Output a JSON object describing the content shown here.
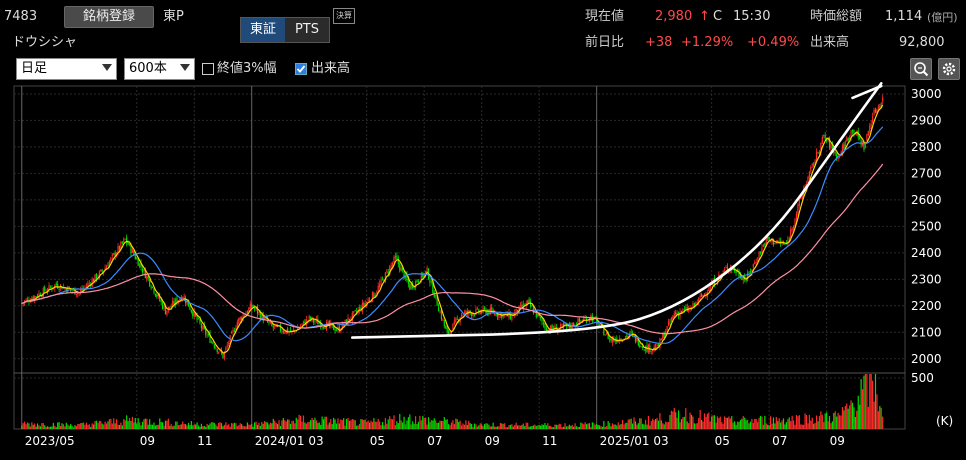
{
  "header": {
    "code": "7483",
    "register_label": "銘柄登録",
    "market": "東P",
    "company_name": "ドウシシャ",
    "tab_tse": "東証",
    "tab_pts": "PTS",
    "settle_badge": "決算",
    "current_label": "現在値",
    "current_value": "2,980",
    "current_arrow": "↑",
    "current_flag": "C",
    "current_time": "15:30",
    "prev_label": "前日比",
    "change": "+38",
    "change_pct": "+1.29%",
    "change_extra": "+0.49%",
    "mcap_label": "時価総額",
    "mcap_value": "1,114",
    "mcap_unit": "(億円)",
    "volume_label": "出来高",
    "volume_value": "92,800"
  },
  "controls": {
    "period": "日足",
    "bars": "600本",
    "close3_label": "終値3%幅",
    "close3_checked": false,
    "volume_label": "出来高",
    "volume_checked": true
  },
  "colors": {
    "up": "#ff4a4a",
    "candle_up": "#ff2b2b",
    "candle_down": "#00dd00",
    "ma_short": "#ffd400",
    "ma_mid": "#3a8cff",
    "ma_long": "#ff8fa3",
    "trend": "#ffffff",
    "grid": "#2a2a2a"
  },
  "chart_data": {
    "type": "line",
    "price_axis": {
      "ylim": [
        1950,
        3030
      ],
      "ticks": [
        2000,
        2100,
        2200,
        2300,
        2400,
        2500,
        2600,
        2700,
        2800,
        2900,
        3000
      ]
    },
    "volume_axis": {
      "max": 500,
      "tick": "500",
      "unit": "(K)"
    },
    "x_tick_labels": [
      "2023/05",
      "09",
      "11",
      "2024/01 03",
      "05",
      "07",
      "09",
      "11",
      "2025/01 03",
      "05",
      "07",
      "09"
    ],
    "x_tick_months": [
      0,
      4,
      6,
      8,
      12,
      14,
      16,
      18,
      20,
      24,
      26,
      28
    ],
    "x_range_months": [
      -0.2,
      30.1
    ],
    "price_path": [
      [
        0,
        2210
      ],
      [
        1.2,
        2280
      ],
      [
        2,
        2250
      ],
      [
        2.8,
        2330
      ],
      [
        3.6,
        2450
      ],
      [
        4.4,
        2300
      ],
      [
        5,
        2180
      ],
      [
        5.6,
        2240
      ],
      [
        6.3,
        2110
      ],
      [
        7,
        2010
      ],
      [
        7.5,
        2140
      ],
      [
        8,
        2200
      ],
      [
        8.7,
        2120
      ],
      [
        9.4,
        2100
      ],
      [
        10,
        2150
      ],
      [
        11,
        2110
      ],
      [
        11.6,
        2170
      ],
      [
        12.3,
        2250
      ],
      [
        13,
        2380
      ],
      [
        13.5,
        2270
      ],
      [
        14.1,
        2330
      ],
      [
        14.8,
        2090
      ],
      [
        15.3,
        2170
      ],
      [
        16.2,
        2180
      ],
      [
        17,
        2160
      ],
      [
        17.6,
        2210
      ],
      [
        18.3,
        2110
      ],
      [
        19,
        2120
      ],
      [
        19.8,
        2160
      ],
      [
        20.5,
        2070
      ],
      [
        21.2,
        2090
      ],
      [
        21.7,
        2040
      ],
      [
        22.1,
        2040
      ],
      [
        22.7,
        2170
      ],
      [
        23.3,
        2190
      ],
      [
        24,
        2280
      ],
      [
        24.6,
        2350
      ],
      [
        25.2,
        2300
      ],
      [
        25.9,
        2450
      ],
      [
        26.6,
        2430
      ],
      [
        27.2,
        2640
      ],
      [
        27.9,
        2840
      ],
      [
        28.4,
        2760
      ],
      [
        28.9,
        2870
      ],
      [
        29.3,
        2800
      ],
      [
        29.6,
        2920
      ],
      [
        29.95,
        2980
      ]
    ],
    "volume_path": [
      [
        0,
        55
      ],
      [
        2,
        40
      ],
      [
        3.8,
        90
      ],
      [
        6,
        50
      ],
      [
        8,
        45
      ],
      [
        9.8,
        95
      ],
      [
        12,
        60
      ],
      [
        13.3,
        110
      ],
      [
        16,
        45
      ],
      [
        18,
        40
      ],
      [
        20,
        45
      ],
      [
        22,
        90
      ],
      [
        23,
        150
      ],
      [
        24.5,
        80
      ],
      [
        26,
        90
      ],
      [
        27.5,
        110
      ],
      [
        28.5,
        130
      ],
      [
        29.6,
        480
      ],
      [
        29.95,
        200
      ]
    ],
    "ma_lengths": [
      5,
      25,
      75
    ],
    "trend_lines": [
      [
        [
          11.5,
          2080
        ],
        [
          20,
          2100
        ],
        [
          23,
          2200
        ],
        [
          26,
          2450
        ],
        [
          28.3,
          2800
        ],
        [
          29.9,
          3040
        ]
      ],
      [
        [
          28.9,
          2985
        ],
        [
          29.9,
          3030
        ]
      ]
    ],
    "grid": true
  }
}
